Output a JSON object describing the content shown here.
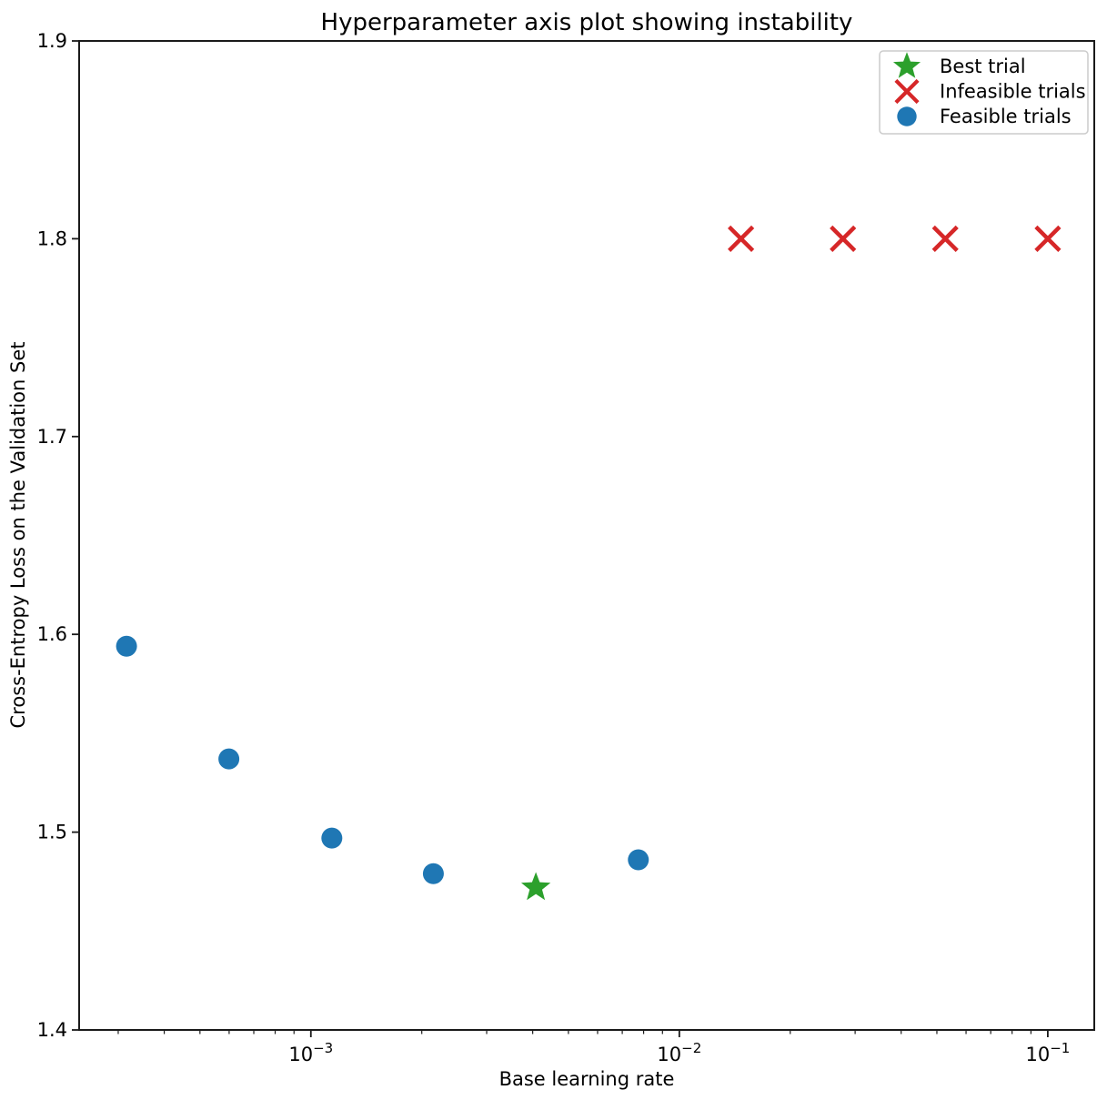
{
  "figure": {
    "title": "Hyperparameter axis plot showing instability",
    "xlabel": "Base learning rate",
    "ylabel": "Cross-Entropy Loss on the Validation Set"
  },
  "chart_data": {
    "type": "scatter",
    "x_scale": "log",
    "y_scale": "linear",
    "xlim": [
      0.000235,
      0.1337
    ],
    "ylim": [
      1.4,
      1.9
    ],
    "grid": false,
    "x_ticks": [
      {
        "value": 0.001,
        "base": "10",
        "exponent": "−3"
      },
      {
        "value": 0.01,
        "base": "10",
        "exponent": "−2"
      },
      {
        "value": 0.1,
        "base": "10",
        "exponent": "−1"
      }
    ],
    "y_ticks": [
      {
        "value": 1.4,
        "label": "1.4"
      },
      {
        "value": 1.5,
        "label": "1.5"
      },
      {
        "value": 1.6,
        "label": "1.6"
      },
      {
        "value": 1.7,
        "label": "1.7"
      },
      {
        "value": 1.8,
        "label": "1.8"
      },
      {
        "value": 1.9,
        "label": "1.9"
      }
    ],
    "series": [
      {
        "name": "Best trial",
        "marker": "star",
        "color": "#2ca02c",
        "points": [
          {
            "x": 0.00408,
            "y": 1.472
          }
        ]
      },
      {
        "name": "Infeasible trials",
        "marker": "x",
        "color": "#d62728",
        "points": [
          {
            "x": 0.0147,
            "y": 1.8
          },
          {
            "x": 0.0278,
            "y": 1.8
          },
          {
            "x": 0.0527,
            "y": 1.8
          },
          {
            "x": 0.1,
            "y": 1.8
          }
        ]
      },
      {
        "name": "Feasible trials",
        "marker": "circle",
        "color": "#1f77b4",
        "points": [
          {
            "x": 0.000316,
            "y": 1.594
          },
          {
            "x": 0.000599,
            "y": 1.537
          },
          {
            "x": 0.00114,
            "y": 1.497
          },
          {
            "x": 0.00215,
            "y": 1.479
          },
          {
            "x": 0.00774,
            "y": 1.486
          }
        ]
      }
    ],
    "legend": {
      "position": "upper right",
      "entries": [
        "Best trial",
        "Infeasible trials",
        "Feasible trials"
      ]
    }
  },
  "colors": {
    "background": "#ffffff",
    "spine": "#1a1a1a",
    "tick": "#1a1a1a",
    "text": "#000000",
    "legend_border": "#cccccc"
  }
}
